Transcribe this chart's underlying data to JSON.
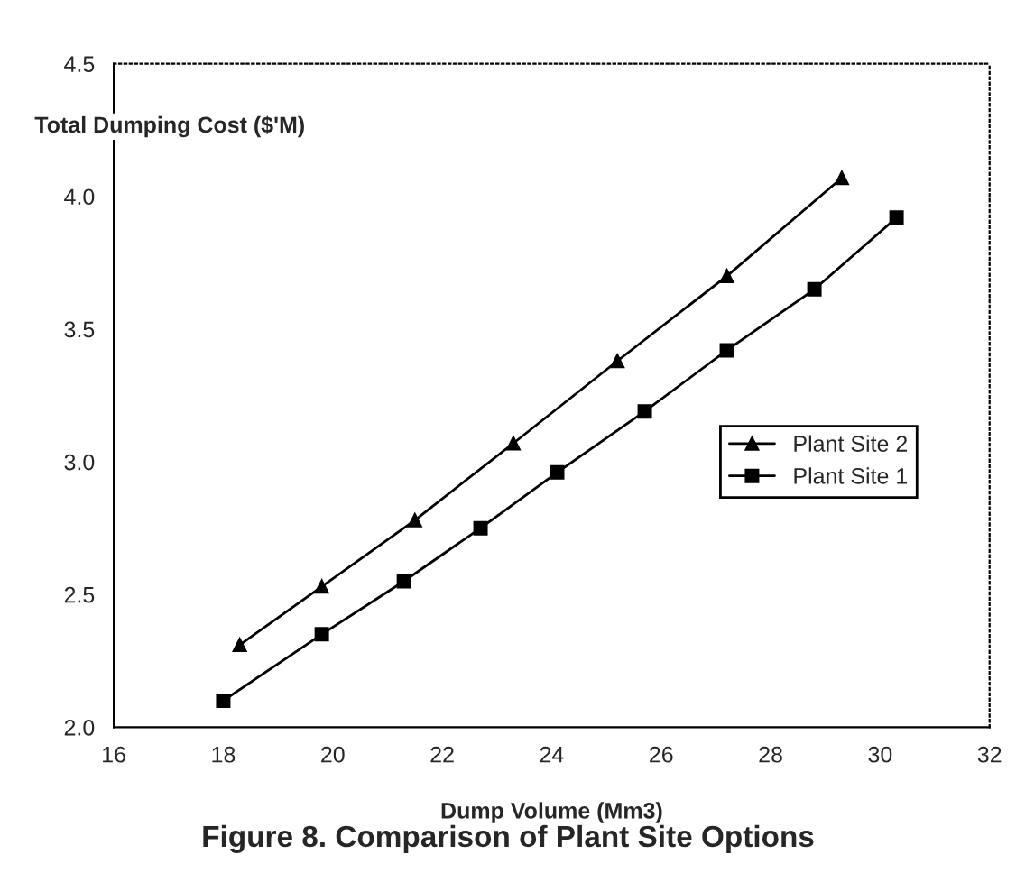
{
  "chart_data": {
    "type": "line",
    "title": "Figure 8. Comparison of Plant Site Options",
    "xlabel": "Dump Volume (Mm3)",
    "ylabel": "Total Dumping Cost ($'M)",
    "series": [
      {
        "name": "Plant Site 2",
        "color": "#000000",
        "marker": "triangle",
        "x": [
          18.3,
          19.8,
          21.5,
          23.3,
          25.2,
          27.2,
          29.3
        ],
        "values": [
          2.31,
          2.53,
          2.78,
          3.07,
          3.38,
          3.7,
          4.07
        ]
      },
      {
        "name": "Plant Site 1",
        "color": "#000000",
        "marker": "square",
        "x": [
          18.0,
          19.8,
          21.3,
          22.7,
          24.1,
          25.7,
          27.2,
          28.8,
          30.3
        ],
        "values": [
          2.1,
          2.35,
          2.55,
          2.75,
          2.96,
          3.19,
          3.42,
          3.65,
          3.92
        ]
      }
    ],
    "xlim": [
      16,
      32
    ],
    "xticks": [
      16,
      18,
      20,
      22,
      24,
      26,
      28,
      30,
      32
    ],
    "ylim": [
      2.0,
      4.5
    ],
    "yticks": [
      {
        "value": 2.0,
        "label": "2.0"
      },
      {
        "value": 2.5,
        "label": "2.5"
      },
      {
        "value": 3.0,
        "label": "3.0"
      },
      {
        "value": 3.5,
        "label": "3.5"
      },
      {
        "value": 4.0,
        "label": "4.0"
      },
      {
        "value": 4.5,
        "label": "4.5"
      }
    ],
    "grid": false,
    "legend": "right",
    "line_style": "solid"
  }
}
